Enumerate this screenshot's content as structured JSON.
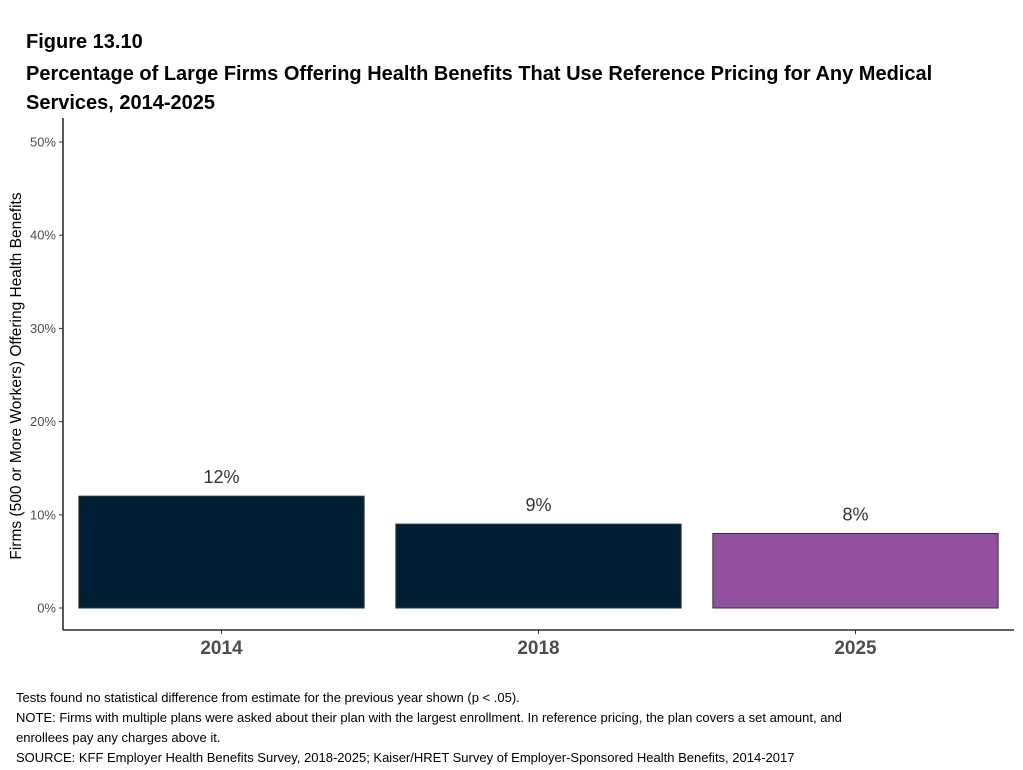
{
  "figure": {
    "label": "Figure 13.10",
    "title": "Percentage of Large Firms Offering Health Benefits That Use Reference Pricing for Any Medical Services, 2014-2025"
  },
  "chart_data": {
    "type": "bar",
    "categories": [
      "2014",
      "2018",
      "2025"
    ],
    "values": [
      12,
      9,
      8
    ],
    "value_labels": [
      "12%",
      "9%",
      "8%"
    ],
    "bar_colors": [
      "#001f35",
      "#001f35",
      "#93509f"
    ],
    "ylabel": "Firms (500 or More Workers) Offering Health Benefits",
    "xlabel": "",
    "ylim": [
      0,
      50
    ],
    "yticks": [
      0,
      10,
      20,
      30,
      40,
      50
    ],
    "ytick_labels": [
      "0%",
      "10%",
      "20%",
      "30%",
      "40%",
      "50%"
    ],
    "grid": false,
    "legend": "none"
  },
  "notes": [
    "Tests found no statistical difference from estimate for the previous year shown (p < .05).",
    "NOTE: Firms with multiple plans were asked about their plan with the largest enrollment.  In reference pricing, the plan covers a set amount, and",
    "enrollees pay any charges above it.",
    "SOURCE: KFF Employer Health Benefits Survey, 2018-2025; Kaiser/HRET Survey of Employer-Sponsored Health Benefits, 2014-2017"
  ]
}
